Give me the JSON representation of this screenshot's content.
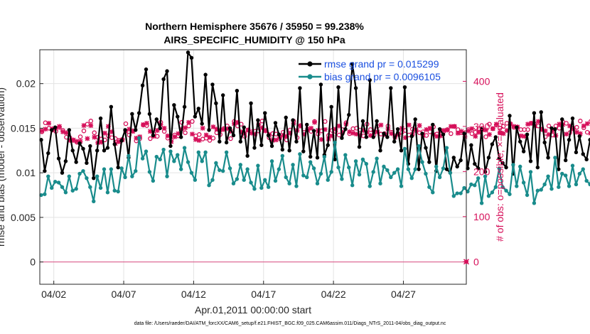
{
  "chart_data": {
    "type": "line",
    "title": "Northern Hemisphere 35676 / 35950 = 99.238%",
    "subtitle": "AIRS_SPECIFIC_HUMIDITY @ 150 hPa",
    "xlabel": "Apr.01,2011 00:00:00 start",
    "ylabel": "rmse and bias (model - observation)",
    "y2label": "# of obs: o=possible; ×=evaluated",
    "xlim": [
      1,
      31.5
    ],
    "ylim": [
      -0.0025,
      0.0238
    ],
    "y2lim": [
      -50,
      470
    ],
    "x_ticks": [
      "04/02",
      "04/07",
      "04/12",
      "04/17",
      "04/22",
      "04/27"
    ],
    "x_tick_values": [
      2,
      7,
      12,
      17,
      22,
      27
    ],
    "y_ticks": [
      "0",
      "0.005",
      "0.01",
      "0.015",
      "0.02"
    ],
    "y_tick_values": [
      0,
      0.005,
      0.01,
      0.015,
      0.02
    ],
    "y2_ticks": [
      "0",
      "100",
      "200",
      "300",
      "400"
    ],
    "y2_tick_values": [
      0,
      100,
      200,
      300,
      400
    ],
    "legend_position": "top-right",
    "footer": "data file: /Users/raeder/DAI/ATM_forcXX/CAM6_setup/f.e21.FHIST_BGC.f09_025.CAM6assim.011/Diags_NTrS_2011-04/obs_diag_output.nc",
    "series": [
      {
        "name": "rmse grand pr = 0.015299",
        "color": "#000000",
        "marker": "circle",
        "axis": "left",
        "x_start": 1.1,
        "x_step": 0.25,
        "values": [
          0.0137,
          0.0102,
          0.0122,
          0.0148,
          0.0151,
          0.0116,
          0.01,
          0.0113,
          0.0148,
          0.0125,
          0.0112,
          0.0133,
          0.0127,
          0.0111,
          0.013,
          0.0094,
          0.0125,
          0.0161,
          0.0125,
          0.0128,
          0.0174,
          0.0132,
          0.0106,
          0.0136,
          0.0148,
          0.0117,
          0.0166,
          0.0148,
          0.0167,
          0.0198,
          0.0216,
          0.0166,
          0.0142,
          0.016,
          0.015,
          0.0205,
          0.0214,
          0.013,
          0.0176,
          0.0163,
          0.014,
          0.0174,
          0.0235,
          0.0229,
          0.0163,
          0.0172,
          0.0155,
          0.021,
          0.0148,
          0.0199,
          0.0178,
          0.0135,
          0.0187,
          0.0134,
          0.015,
          0.0142,
          0.0192,
          0.0135,
          0.0151,
          0.0119,
          0.0178,
          0.0128,
          0.0159,
          0.0131,
          0.0167,
          0.0142,
          0.013,
          0.0156,
          0.0143,
          0.0126,
          0.0162,
          0.0125,
          0.0159,
          0.0135,
          0.0195,
          0.0124,
          0.0154,
          0.0118,
          0.0147,
          0.0117,
          0.0199,
          0.012,
          0.0131,
          0.0174,
          0.0115,
          0.0196,
          0.0139,
          0.0149,
          0.0165,
          0.0222,
          0.0195,
          0.0129,
          0.0158,
          0.014,
          0.0204,
          0.014,
          0.0158,
          0.0125,
          0.0144,
          0.014,
          0.0195,
          0.0135,
          0.0149,
          0.0125,
          0.0196,
          0.011,
          0.0141,
          0.016,
          0.0104,
          0.0144,
          0.0128,
          0.0112,
          0.0154,
          0.0102,
          0.0149,
          0.0143,
          0.0104,
          0.01,
          0.0117,
          0.0107,
          0.0114,
          0.0144,
          0.0105,
          0.0131,
          0.011,
          0.0105,
          0.0149,
          0.0101,
          0.0117,
          0.0132,
          0.014,
          0.0116,
          0.0111,
          0.0106,
          0.0164,
          0.0099,
          0.0151,
          0.0135,
          0.0124,
          0.0143,
          0.0113,
          0.0167,
          0.0106,
          0.0168,
          0.0134,
          0.0117,
          0.015,
          0.0149,
          0.0104,
          0.016,
          0.0114,
          0.0137,
          0.0161,
          0.0123,
          0.0141,
          0.0121,
          0.0115,
          0.0137,
          0.015,
          0.0177,
          0.0151,
          0.0149,
          0.0131,
          0.0178,
          0.0173,
          0.0135,
          0.015,
          0.0155,
          0.0167,
          0.0141,
          0.018,
          0.0154,
          0.0139,
          0.0181,
          0.0147,
          0.013,
          0.0167,
          0.0138,
          0.0173,
          0.0145,
          0.0155
        ]
      },
      {
        "name": "bias grand pr = 0.0096105",
        "color": "#198c8c",
        "marker": "circle",
        "axis": "left",
        "x_start": 1.1,
        "x_step": 0.25,
        "values": [
          0.0075,
          0.0076,
          0.0096,
          0.0083,
          0.009,
          0.0089,
          0.0084,
          0.0078,
          0.0096,
          0.008,
          0.0082,
          0.0099,
          0.0102,
          0.0094,
          0.0084,
          0.0068,
          0.0096,
          0.0083,
          0.0104,
          0.0078,
          0.0104,
          0.008,
          0.0079,
          0.0105,
          0.0095,
          0.0119,
          0.0096,
          0.0102,
          0.0139,
          0.0116,
          0.0124,
          0.0101,
          0.0091,
          0.0118,
          0.0115,
          0.0126,
          0.0096,
          0.0124,
          0.0113,
          0.012,
          0.0104,
          0.0128,
          0.0112,
          0.01,
          0.0092,
          0.0123,
          0.0113,
          0.0123,
          0.0086,
          0.0092,
          0.0111,
          0.0103,
          0.0102,
          0.0123,
          0.0105,
          0.0088,
          0.0093,
          0.0109,
          0.0092,
          0.0104,
          0.0089,
          0.0082,
          0.0108,
          0.0083,
          0.0092,
          0.0084,
          0.0113,
          0.0091,
          0.0104,
          0.0119,
          0.0095,
          0.0088,
          0.0109,
          0.0085,
          0.0121,
          0.0097,
          0.0095,
          0.0112,
          0.0105,
          0.0088,
          0.0099,
          0.0118,
          0.0092,
          0.0101,
          0.0134,
          0.0106,
          0.0093,
          0.012,
          0.0106,
          0.0086,
          0.0113,
          0.0098,
          0.0115,
          0.011,
          0.0085,
          0.0101,
          0.0116,
          0.0088,
          0.0107,
          0.0103,
          0.0095,
          0.01,
          0.0104,
          0.0085,
          0.0127,
          0.0104,
          0.0094,
          0.0104,
          0.013,
          0.0112,
          0.0099,
          0.0084,
          0.0078,
          0.0107,
          0.0095,
          0.0105,
          0.0128,
          0.01,
          0.0074,
          0.0077,
          0.0077,
          0.0083,
          0.0079,
          0.0087,
          0.0086,
          0.0094,
          0.0066,
          0.0096,
          0.0074,
          0.0078,
          0.0084,
          0.0105,
          0.0084,
          0.008,
          0.0076,
          0.0109,
          0.0085,
          0.0107,
          0.0089,
          0.0075,
          0.0101,
          0.0066,
          0.008,
          0.0081,
          0.0087,
          0.0096,
          0.0082,
          0.0117,
          0.0084,
          0.0099,
          0.0097,
          0.0085,
          0.0108,
          0.0087,
          0.0099,
          0.0104,
          0.0091,
          0.0087,
          0.0112,
          0.0095,
          0.008,
          0.0104,
          0.01,
          0.0111,
          0.012,
          0.009,
          0.011,
          0.0088,
          0.0116,
          0.0102,
          0.0104,
          0.0114,
          0.0106,
          0.0123,
          0.0114,
          0.01,
          0.0085,
          0.01,
          0.0105,
          0.0092,
          0.0088,
          0.0096,
          0.009,
          0.0092
        ]
      },
      {
        "name": "obs possible",
        "color": "#d6105a",
        "marker": "o",
        "axis": "right",
        "x_start": 1.15,
        "x_step": 0.25,
        "values": [
          288,
          308,
          296,
          292,
          289,
          298,
          291,
          276,
          275,
          269,
          265,
          277,
          290,
          305,
          312,
          286,
          276,
          272,
          270,
          279,
          275,
          273,
          269,
          271,
          306,
          281,
          290,
          268,
          273,
          303,
          302,
          273,
          284,
          278,
          309,
          289,
          274,
          271,
          281,
          279,
          309,
          286,
          301,
          311,
          279,
          282,
          272,
          274,
          269,
          274,
          286,
          282,
          295,
          301,
          273,
          311,
          301,
          305,
          278,
          292,
          288,
          289,
          290,
          312,
          291,
          275,
          284,
          283,
          273,
          287,
          270,
          292,
          312,
          275,
          302,
          287,
          294,
          289,
          311,
          283,
          290,
          311,
          280,
          291,
          289,
          281,
          293,
          308,
          284,
          295,
          296,
          292,
          279,
          305,
          293,
          281,
          300,
          283,
          284,
          301,
          287,
          279,
          283,
          287,
          291,
          281,
          294,
          291,
          286,
          288,
          280,
          288,
          299,
          283,
          290,
          289,
          293,
          284,
          300,
          293,
          286,
          286,
          293,
          284,
          287,
          295,
          296,
          277,
          305,
          295,
          303,
          296,
          300,
          307,
          306,
          298,
          298,
          293,
          293,
          293,
          307,
          305,
          301,
          294,
          277,
          301,
          281,
          301,
          296,
          310,
          307,
          286,
          296,
          298,
          312,
          297,
          287,
          311,
          304,
          283,
          298,
          304,
          290,
          282,
          293,
          286,
          300,
          302,
          290,
          280,
          296,
          285,
          309,
          283,
          293,
          302,
          312,
          283,
          282,
          306,
          298,
          302,
          286,
          294,
          310
        ]
      },
      {
        "name": "obs evaluated",
        "color": "#d6105a",
        "marker": "x",
        "axis": "right",
        "x_start": 1.15,
        "x_step": 0.25,
        "values": [
          290,
          294,
          307,
          295,
          295,
          300,
          288,
          286,
          269,
          270,
          267,
          267,
          302,
          273,
          302,
          276,
          264,
          265,
          285,
          300,
          288,
          262,
          266,
          270,
          289,
          294,
          289,
          274,
          277,
          304,
          307,
          289,
          278,
          291,
          304,
          296,
          279,
          266,
          277,
          284,
          294,
          297,
          309,
          283,
          271,
          269,
          296,
          281,
          276,
          299,
          294,
          292,
          293,
          295,
          289,
          306,
          309,
          288,
          285,
          292,
          285,
          283,
          304,
          297,
          290,
          282,
          269,
          270,
          276,
          280,
          278,
          285,
          307,
          291,
          301,
          283,
          292,
          296,
          309,
          291,
          271,
          293,
          272,
          279,
          294,
          301,
          287,
          305,
          288,
          285,
          283,
          280,
          291,
          287,
          280,
          288,
          288,
          303,
          282,
          294,
          284,
          276,
          282,
          296,
          275,
          303,
          283,
          293,
          302,
          280,
          293,
          296,
          282,
          278,
          279,
          291,
          292,
          300,
          300,
          285,
          289,
          277,
          290,
          295,
          278,
          287,
          292,
          292,
          282,
          295,
          305,
          286,
          284,
          291,
          305,
          300,
          299,
          279,
          278,
          305,
          307,
          301,
          311,
          293,
          290,
          282,
          290,
          280,
          305,
          304,
          283,
          301,
          294,
          287,
          284,
          301,
          306,
          285,
          306,
          307,
          283,
          284,
          293,
          300,
          282,
          284,
          294,
          294,
          278,
          296,
          293,
          289,
          297,
          281,
          292,
          298,
          295,
          298,
          288,
          300,
          299,
          287,
          288,
          294,
          305
        ]
      }
    ]
  }
}
